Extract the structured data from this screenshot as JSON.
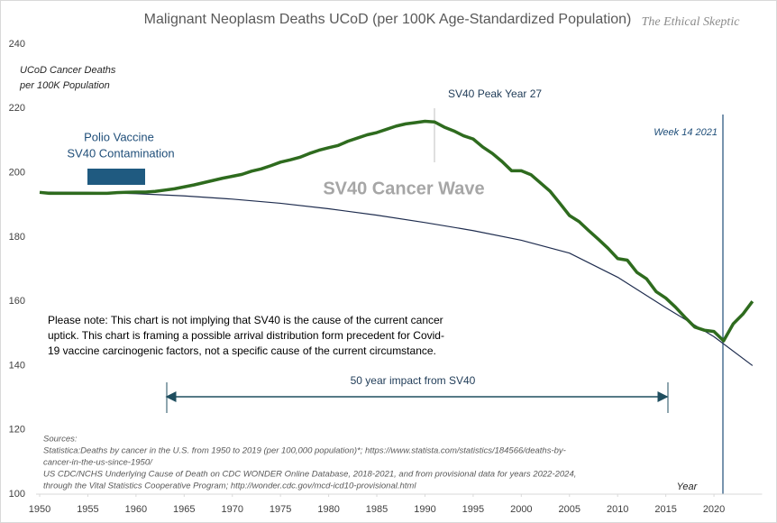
{
  "chart_data": {
    "type": "line",
    "title": "Malignant Neoplasm Deaths UCoD (per 100K Age-Standardized Population)",
    "watermark": "The Ethical Skeptic",
    "y_label": [
      "UCoD Cancer Deaths",
      "per 100K Population"
    ],
    "x_label": "Year",
    "xlim": [
      1950,
      2025
    ],
    "xticks": [
      1950,
      1955,
      1960,
      1965,
      1970,
      1975,
      1980,
      1985,
      1990,
      1995,
      2000,
      2005,
      2010,
      2015,
      2020
    ],
    "ylim": [
      100,
      240
    ],
    "yticks": [
      100,
      120,
      140,
      160,
      180,
      200,
      220,
      240
    ],
    "series": [
      {
        "color": "#2e6b1e",
        "x": [
          1950,
          1951,
          1952,
          1953,
          1954,
          1955,
          1956,
          1957,
          1958,
          1959,
          1960,
          1961,
          1962,
          1963,
          1964,
          1965,
          1966,
          1967,
          1968,
          1969,
          1970,
          1971,
          1972,
          1973,
          1974,
          1975,
          1976,
          1977,
          1978,
          1979,
          1980,
          1981,
          1982,
          1983,
          1984,
          1985,
          1986,
          1987,
          1988,
          1989,
          1990,
          1991,
          1992,
          1993,
          1994,
          1995,
          1996,
          1997,
          1998,
          1999,
          2000,
          2001,
          2002,
          2003,
          2004,
          2005,
          2006,
          2007,
          2008,
          2009,
          2010,
          2011,
          2012,
          2013,
          2014,
          2015,
          2016,
          2017,
          2018,
          2019,
          2020,
          2021,
          2022,
          2023,
          2024
        ],
        "values": [
          193.9,
          193.6,
          193.6,
          193.6,
          193.6,
          193.6,
          193.6,
          193.6,
          193.8,
          193.9,
          194.0,
          194.0,
          194.2,
          194.6,
          195.0,
          195.6,
          196.2,
          196.9,
          197.6,
          198.3,
          198.9,
          199.5,
          200.5,
          201.2,
          202.2,
          203.3,
          204.0,
          204.8,
          206.0,
          207.0,
          207.8,
          208.5,
          209.8,
          210.8,
          211.8,
          212.5,
          213.5,
          214.5,
          215.2,
          215.6,
          216.0,
          215.8,
          214.2,
          213.0,
          211.5,
          210.5,
          208.0,
          206.0,
          203.5,
          200.6,
          200.6,
          199.4,
          196.8,
          194.2,
          190.5,
          186.7,
          184.8,
          182.0,
          179.3,
          176.5,
          173.3,
          172.8,
          169.0,
          167.0,
          163.0,
          161.0,
          158.2,
          155.0,
          152.0,
          151.0,
          150.6,
          147.7,
          153.0,
          156.0,
          160.0
        ]
      },
      {
        "color": "#1f2d4f",
        "x": [
          1950,
          1955,
          1960,
          1965,
          1970,
          1975,
          1980,
          1985,
          1990,
          1995,
          2000,
          2005,
          2010,
          2015,
          2020,
          2024
        ],
        "values": [
          194.0,
          193.9,
          193.5,
          192.8,
          191.8,
          190.5,
          188.8,
          186.8,
          184.5,
          182.0,
          179.0,
          175.0,
          167.5,
          158.0,
          149.0,
          140.0
        ]
      }
    ],
    "annotations": {
      "polio": [
        "Polio Vaccine",
        "SV40 Contamination"
      ],
      "peak": "SV40 Peak Year 27",
      "week": "Week 14 2021",
      "wave": "SV40 Cancer Wave",
      "note": [
        "Please note: This chart is not implying that SV40 is the cause of the current cancer",
        "uptick. This chart is framing a possible arrival distribution form precedent for Covid-",
        "19 vaccine carcinogenic factors, not a specific cause of the current circumstance."
      ],
      "impact": "50 year impact from SV40",
      "sources": [
        "Sources:",
        "Statistica:Deaths by cancer in the U.S. from 1950 to 2019 (per 100,000 population)*; https://www.statista.com/statistics/184566/deaths-by-",
        "cancer-in-the-us-since-1950/",
        "US CDC/NCHS Underlying Cause of Death on CDC WONDER Online Database, 2018-2021, and from provisional data for years 2022-2024,",
        "through the Vital Statistics Cooperative Program; http://wonder.cdc.gov/mcd-icd10-provisional.html"
      ]
    }
  }
}
